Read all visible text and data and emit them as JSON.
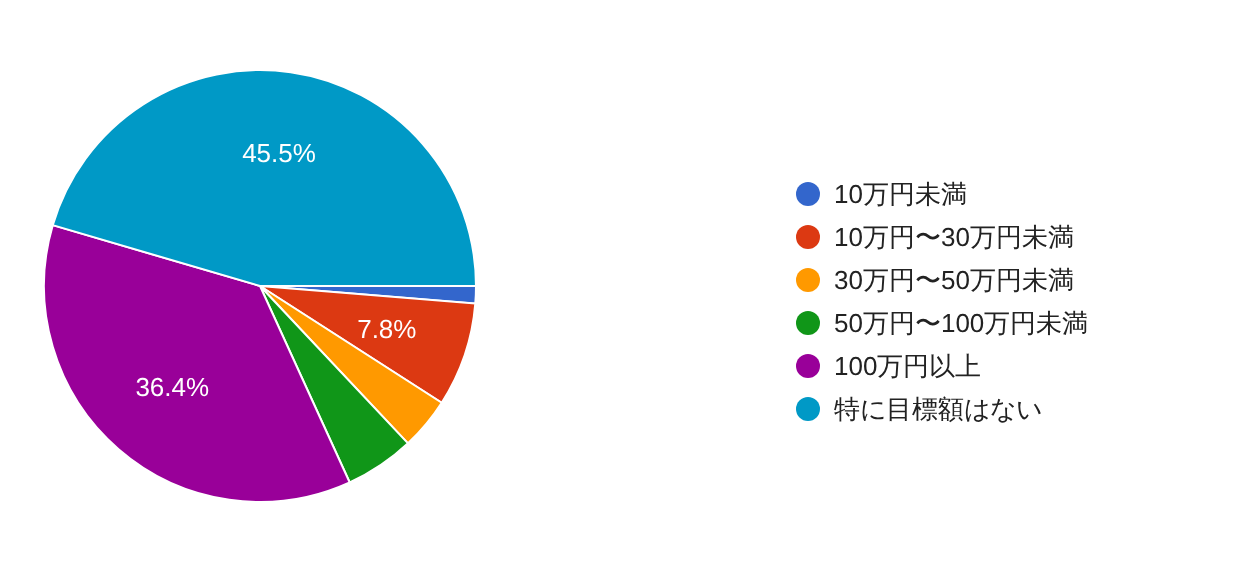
{
  "chart_data": {
    "type": "pie",
    "categories": [
      "10万円未満",
      "10万円〜30万円未満",
      "30万円〜50万円未満",
      "50万円〜100万円未満",
      "100万円以上",
      "特に目標額はない"
    ],
    "values": [
      1.3,
      7.8,
      3.9,
      5.2,
      36.4,
      45.5
    ],
    "colors": [
      "#3366cc",
      "#dc3912",
      "#ff9900",
      "#109618",
      "#990099",
      "#0099c6"
    ],
    "value_labels": [
      null,
      "7.8%",
      null,
      null,
      "36.4%",
      "45.5%"
    ],
    "legend": "right"
  }
}
